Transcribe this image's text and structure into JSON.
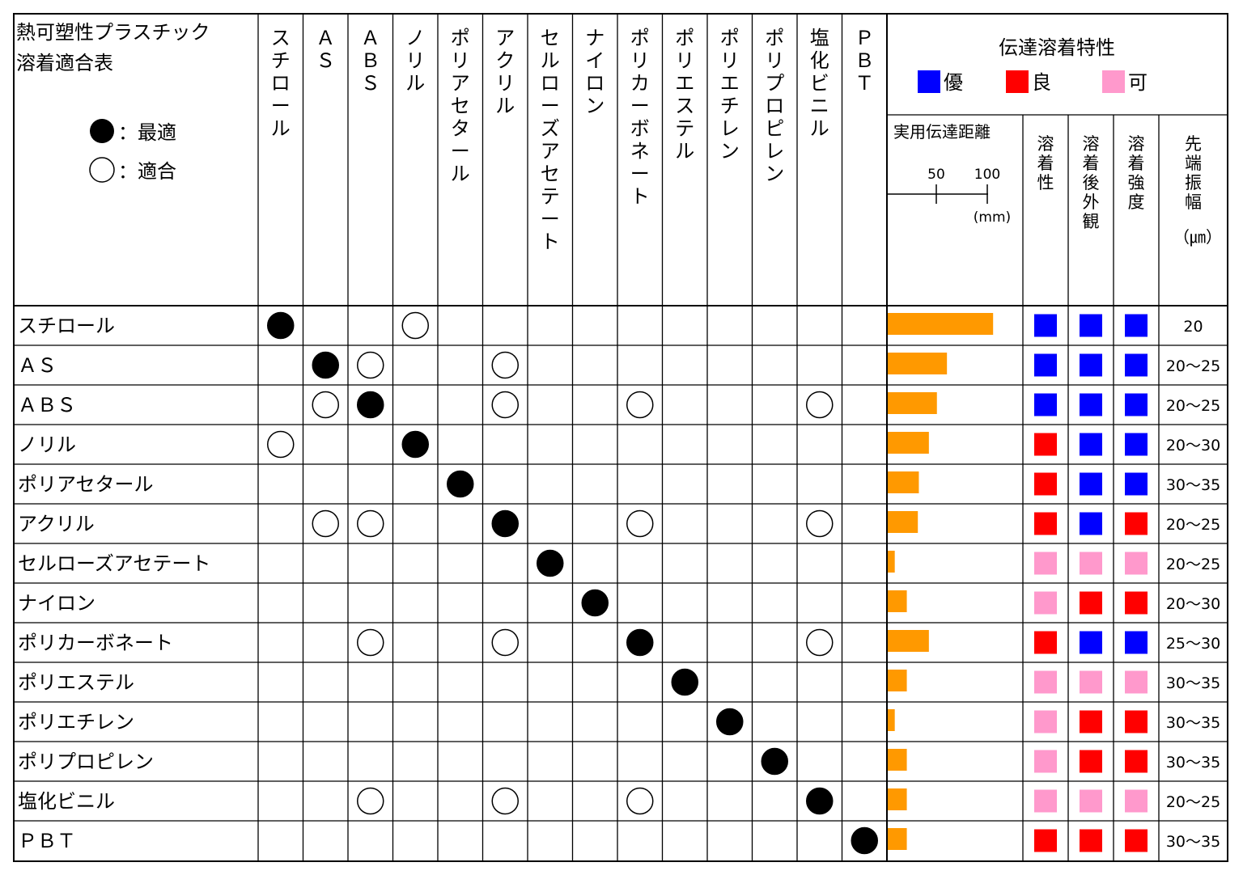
{
  "title_line1": "熱可塑性プラスチック",
  "title_line2": "溶着適合表",
  "legend": {
    "best_label": "：最適",
    "good_label": "：適合"
  },
  "materials": [
    "スチロール",
    "ＡＳ",
    "ＡＢＳ",
    "ノリル",
    "ポリアセタール",
    "アクリル",
    "セルローズアセテート",
    "ナイロン",
    "ポリカーボネート",
    "ポリエステル",
    "ポリエチレン",
    "ポリプロピレン",
    "塩化ビニル",
    "ＰＢＴ"
  ],
  "column_headers": [
    "スチロール",
    "ＡＳ",
    "ＡＢＳ",
    "ノリル",
    "ポリアセタール",
    "アクリル",
    "セルローズアセテート",
    "ナイロン",
    "ポリカーボネート",
    "ポリエステル",
    "ポリエチレン",
    "ポリプロピレン",
    "塩化ビニル",
    "ＰＢＴ"
  ],
  "compatibility": [
    [
      "best",
      "",
      "",
      "good",
      "",
      "",
      "",
      "",
      "",
      "",
      "",
      "",
      "",
      ""
    ],
    [
      "",
      "best",
      "good",
      "",
      "",
      "good",
      "",
      "",
      "",
      "",
      "",
      "",
      "",
      ""
    ],
    [
      "",
      "good",
      "best",
      "",
      "",
      "good",
      "",
      "",
      "good",
      "",
      "",
      "",
      "good",
      ""
    ],
    [
      "good",
      "",
      "",
      "best",
      "",
      "",
      "",
      "",
      "",
      "",
      "",
      "",
      "",
      ""
    ],
    [
      "",
      "",
      "",
      "",
      "best",
      "",
      "",
      "",
      "",
      "",
      "",
      "",
      "",
      ""
    ],
    [
      "",
      "good",
      "good",
      "",
      "",
      "best",
      "",
      "",
      "good",
      "",
      "",
      "",
      "good",
      ""
    ],
    [
      "",
      "",
      "",
      "",
      "",
      "",
      "best",
      "",
      "",
      "",
      "",
      "",
      "",
      ""
    ],
    [
      "",
      "",
      "",
      "",
      "",
      "",
      "",
      "best",
      "",
      "",
      "",
      "",
      "",
      ""
    ],
    [
      "",
      "",
      "good",
      "",
      "",
      "good",
      "",
      "",
      "best",
      "",
      "",
      "",
      "good",
      ""
    ],
    [
      "",
      "",
      "",
      "",
      "",
      "",
      "",
      "",
      "",
      "best",
      "",
      "",
      "",
      ""
    ],
    [
      "",
      "",
      "",
      "",
      "",
      "",
      "",
      "",
      "",
      "",
      "best",
      "",
      "",
      ""
    ],
    [
      "",
      "",
      "",
      "",
      "",
      "",
      "",
      "",
      "",
      "",
      "",
      "best",
      "",
      ""
    ],
    [
      "",
      "",
      "good",
      "",
      "",
      "good",
      "",
      "",
      "good",
      "",
      "",
      "",
      "best",
      ""
    ],
    [
      "",
      "",
      "",
      "",
      "",
      "",
      "",
      "",
      "",
      "",
      "",
      "",
      "",
      "best"
    ]
  ],
  "transmission": {
    "title": "伝達溶着特性",
    "rating_legend": [
      {
        "label": "優",
        "color": "#0000ff"
      },
      {
        "label": "良",
        "color": "#ff0000"
      },
      {
        "label": "可",
        "color": "#ff99cc"
      }
    ],
    "distance_header": "実用伝達距離",
    "scale_ticks": [
      "50",
      "100"
    ],
    "scale_unit": "(mm)",
    "col_weldability": "溶着性",
    "col_appearance": "溶着後外観",
    "col_strength": "溶着強度",
    "col_amplitude": "先端振幅",
    "amplitude_unit": "（㎛）",
    "bar_color": "#ff9900"
  },
  "chart_data": {
    "type": "bar",
    "categories": [
      "スチロール",
      "ＡＳ",
      "ＡＢＳ",
      "ノリル",
      "ポリアセタール",
      "アクリル",
      "セルローズアセテート",
      "ナイロン",
      "ポリカーボネート",
      "ポリエステル",
      "ポリエチレン",
      "ポリプロピレン",
      "塩化ビニル",
      "ＰＢＴ"
    ],
    "values": [
      105,
      59,
      49,
      41,
      31,
      30,
      7,
      19,
      41,
      19,
      7,
      19,
      19,
      19
    ],
    "xlabel": "実用伝達距離",
    "unit": "mm",
    "xlim": [
      0,
      100
    ]
  },
  "ratings": {
    "weldability": [
      "優",
      "優",
      "優",
      "良",
      "良",
      "良",
      "可",
      "可",
      "良",
      "可",
      "可",
      "可",
      "可",
      "良"
    ],
    "appearance": [
      "優",
      "優",
      "優",
      "優",
      "優",
      "優",
      "可",
      "良",
      "優",
      "可",
      "良",
      "良",
      "可",
      "良"
    ],
    "strength": [
      "優",
      "優",
      "優",
      "優",
      "優",
      "良",
      "可",
      "良",
      "優",
      "可",
      "良",
      "良",
      "可",
      "良"
    ]
  },
  "amplitudes": [
    "20",
    "20～25",
    "20～25",
    "20～30",
    "30～35",
    "20～25",
    "20～25",
    "20～30",
    "25～30",
    "30～35",
    "30～35",
    "30～35",
    "20～25",
    "30～35"
  ]
}
